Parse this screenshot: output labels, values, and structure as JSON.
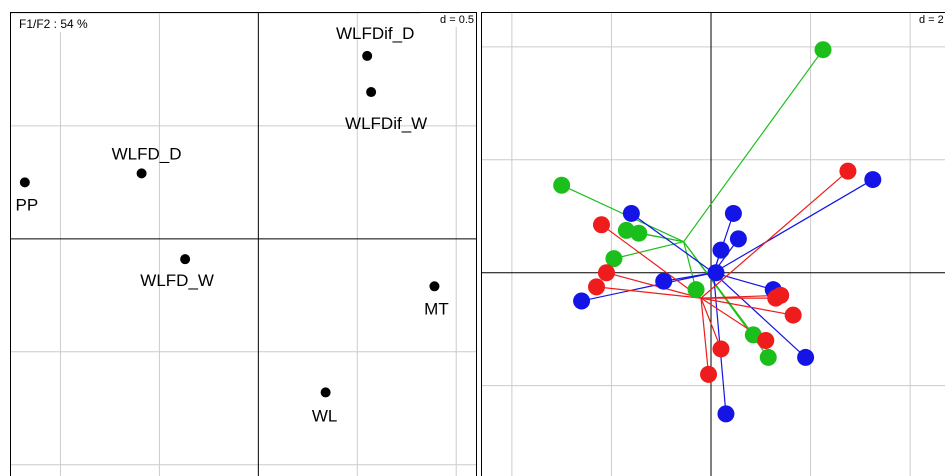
{
  "chart_data": [
    {
      "type": "scatter",
      "title": "F1/F2 : 54 %",
      "scale_label": "d = 0.5",
      "xlim": [
        -1.25,
        1.1
      ],
      "ylim": [
        -1.05,
        1.0
      ],
      "grid": true,
      "grid_step": 0.5,
      "points": [
        {
          "label": "WLFDif_D",
          "x": 0.55,
          "y": 0.81
        },
        {
          "label": "WLFDif_W",
          "x": 0.57,
          "y": 0.65
        },
        {
          "label": "WLFD_D",
          "x": -0.59,
          "y": 0.29
        },
        {
          "label": "PP",
          "x": -1.18,
          "y": 0.25
        },
        {
          "label": "WLFD_W",
          "x": -0.37,
          "y": -0.09
        },
        {
          "label": "MT",
          "x": 0.89,
          "y": -0.21
        },
        {
          "label": "WL",
          "x": 0.34,
          "y": -0.68
        }
      ]
    },
    {
      "type": "scatter",
      "scale_label": "d = 2",
      "xlim": [
        -4.6,
        4.7
      ],
      "ylim": [
        -3.6,
        4.6
      ],
      "grid": true,
      "grid_step": 2,
      "colors": {
        "red": "#ee1c1c",
        "blue": "#1414e6",
        "green": "#1bbf1b"
      },
      "groups": [
        {
          "color": "green",
          "centroid": [
            -0.55,
            0.55
          ],
          "points": [
            [
              2.25,
              3.95
            ],
            [
              -3.0,
              1.55
            ],
            [
              -1.7,
              0.75
            ],
            [
              -1.45,
              0.7
            ],
            [
              -1.95,
              0.25
            ],
            [
              -0.3,
              -0.3
            ],
            [
              0.85,
              -1.1
            ],
            [
              1.15,
              -1.5
            ]
          ]
        },
        {
          "color": "blue",
          "centroid": [
            0.05,
            0.0
          ],
          "points": [
            [
              3.25,
              1.65
            ],
            [
              -1.6,
              1.05
            ],
            [
              0.45,
              1.05
            ],
            [
              0.55,
              0.6
            ],
            [
              0.2,
              0.4
            ],
            [
              -0.95,
              -0.15
            ],
            [
              0.1,
              0.0
            ],
            [
              1.25,
              -0.3
            ],
            [
              -2.6,
              -0.5
            ],
            [
              1.9,
              -1.5
            ],
            [
              0.3,
              -2.5
            ]
          ]
        },
        {
          "color": "red",
          "centroid": [
            -0.2,
            -0.45
          ],
          "points": [
            [
              2.75,
              1.8
            ],
            [
              -2.2,
              0.85
            ],
            [
              -2.1,
              0.0
            ],
            [
              -2.3,
              -0.25
            ],
            [
              1.4,
              -0.4
            ],
            [
              1.3,
              -0.45
            ],
            [
              1.65,
              -0.75
            ],
            [
              1.1,
              -1.2
            ],
            [
              0.2,
              -1.35
            ],
            [
              -0.05,
              -1.8
            ]
          ]
        }
      ]
    }
  ]
}
